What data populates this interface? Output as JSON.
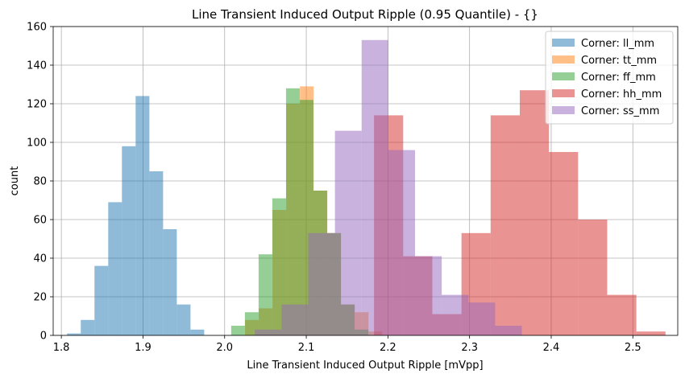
{
  "chart_data": {
    "type": "histogram",
    "title": "Line Transient Induced Output Ripple (0.95 Quantile) - {}",
    "xlabel": "Line Transient Induced Output Ripple [mVpp]",
    "ylabel": "count",
    "xlim": [
      1.79,
      2.555
    ],
    "ylim": [
      0,
      160
    ],
    "x_ticks": [
      1.8,
      1.9,
      2.0,
      2.1,
      2.2,
      2.3,
      2.4,
      2.5
    ],
    "x_tick_labels": [
      "1.8",
      "1.9",
      "2.0",
      "2.1",
      "2.2",
      "2.3",
      "2.4",
      "2.5"
    ],
    "y_ticks": [
      0,
      20,
      40,
      60,
      80,
      100,
      120,
      140,
      160
    ],
    "y_tick_labels": [
      "0",
      "20",
      "40",
      "60",
      "80",
      "100",
      "120",
      "140",
      "160"
    ],
    "grid": true,
    "legend_position": "top-right",
    "alpha": 0.5,
    "series": [
      {
        "name": "Corner: ll_mm",
        "color": "#1f77b4",
        "bin_start": 1.807,
        "bin_width": 0.0168,
        "counts": [
          1,
          8,
          36,
          69,
          98,
          124,
          85,
          55,
          16,
          3
        ]
      },
      {
        "name": "Corner: tt_mm",
        "color": "#ff7f0e",
        "bin_start": 2.025,
        "bin_width": 0.0168,
        "counts": [
          8,
          14,
          65,
          120,
          129,
          75,
          53,
          16,
          12,
          2
        ]
      },
      {
        "name": "Corner: ff_mm",
        "color": "#2ca02c",
        "bin_start": 2.008,
        "bin_width": 0.0168,
        "counts": [
          5,
          12,
          42,
          71,
          128,
          122,
          75,
          53,
          16,
          3
        ]
      },
      {
        "name": "Corner: hh_mm",
        "color": "#d62728",
        "bin_start": 2.183,
        "bin_width": 0.0357,
        "counts": [
          114,
          41,
          11,
          53,
          114,
          127,
          95,
          60,
          21,
          2
        ]
      },
      {
        "name": "Corner: ss_mm",
        "color": "#9467bd",
        "bin_start": 2.037,
        "bin_width": 0.0327,
        "counts": [
          3,
          16,
          53,
          106,
          153,
          96,
          41,
          21,
          17,
          5
        ]
      }
    ]
  }
}
